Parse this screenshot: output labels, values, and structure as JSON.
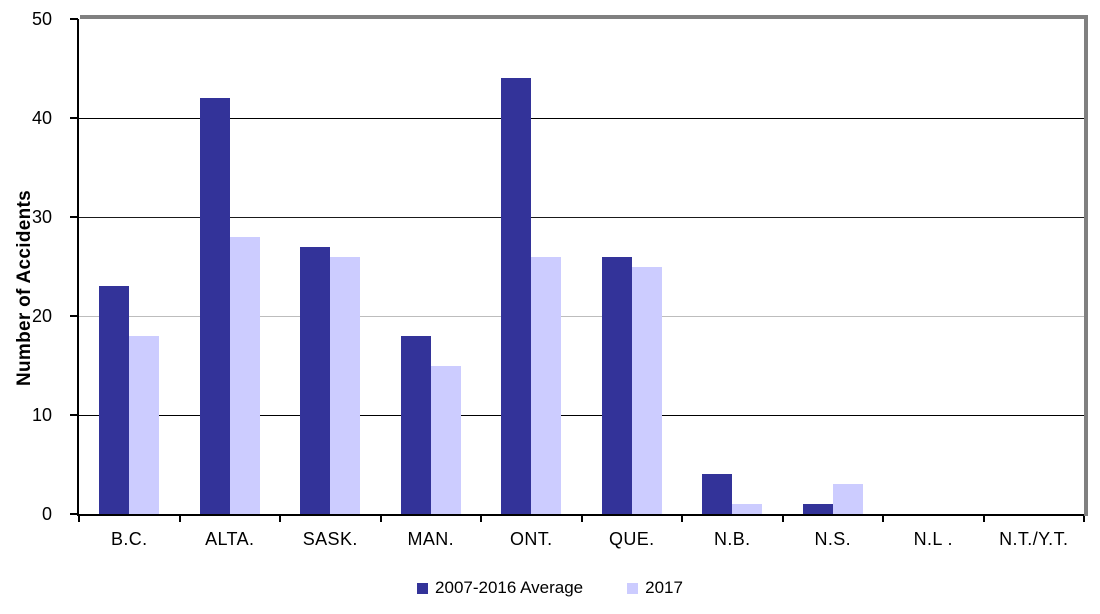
{
  "chart_data": {
    "type": "bar",
    "title": "",
    "xlabel": "",
    "ylabel": "Number of Accidents",
    "categories": [
      "B.C.",
      "ALTA.",
      "SASK.",
      "MAN.",
      "ONT.",
      "QUE.",
      "N.B.",
      "N.S.",
      "N.L .",
      "N.T./Y.T."
    ],
    "series": [
      {
        "name": "2007-2016 Average",
        "color": "#333399",
        "values": [
          23,
          42,
          27,
          18,
          44,
          26,
          4,
          1,
          0,
          0
        ]
      },
      {
        "name": "2017",
        "color": "#ccccff",
        "values": [
          18,
          28,
          26,
          15,
          26,
          25,
          1,
          3,
          0,
          0
        ]
      }
    ],
    "ylim": [
      0,
      50
    ],
    "yticks": [
      0,
      10,
      20,
      30,
      40,
      50
    ],
    "grid": true,
    "gridline_values": [
      10,
      20,
      30,
      40
    ],
    "gridline_colors": [
      "#000000",
      "#bdbdbd",
      "#1a1a1a",
      "#000000"
    ],
    "legend_position": "bottom-center",
    "axis_color": "#000000",
    "plot_shadow_color": "#808080",
    "background_color": "#ffffff"
  }
}
